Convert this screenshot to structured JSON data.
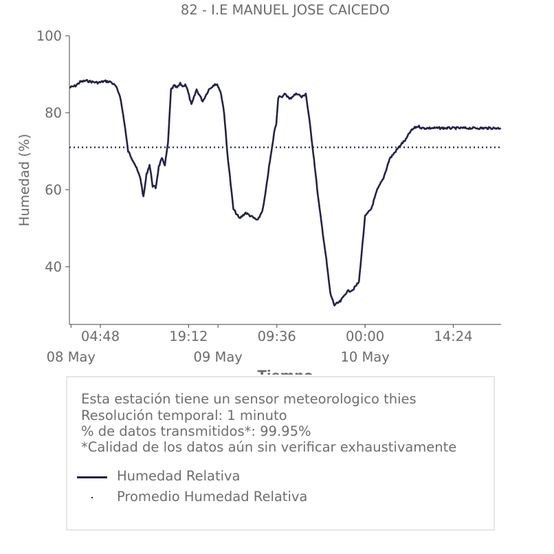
{
  "chart_data": {
    "type": "line",
    "title": "82 - I.E MANUEL JOSE CAICEDO",
    "xlabel": "Tiempo",
    "ylabel": "Humedad (%)",
    "ylim": [
      25,
      100
    ],
    "yticks": [
      40,
      60,
      80,
      100
    ],
    "xlim": [
      "2024-05-07 23:45",
      "2024-05-10 22:12"
    ],
    "xticks": [
      {
        "t": "2024-05-08 04:48",
        "label": "04:48"
      },
      {
        "t": "2024-05-08 19:12",
        "label": "19:12"
      },
      {
        "t": "2024-05-09 09:36",
        "label": "09:36"
      },
      {
        "t": "2024-05-10 00:00",
        "label": "00:00"
      },
      {
        "t": "2024-05-10 14:24",
        "label": "14:24"
      }
    ],
    "day_labels": [
      {
        "t": "2024-05-08 00:00",
        "label": "08 May"
      },
      {
        "t": "2024-05-09 00:00",
        "label": "09 May"
      },
      {
        "t": "2024-05-10 00:00",
        "label": "10 May"
      }
    ],
    "series": [
      {
        "name": "Humedad Relativa",
        "color": "#22224a",
        "style": "solid",
        "x": [
          "2024-05-07 23:45",
          "2024-05-08 00:45",
          "2024-05-08 01:30",
          "2024-05-08 02:30",
          "2024-05-08 03:30",
          "2024-05-08 04:30",
          "2024-05-08 05:30",
          "2024-05-08 06:30",
          "2024-05-08 07:15",
          "2024-05-08 08:00",
          "2024-05-08 08:40",
          "2024-05-08 09:20",
          "2024-05-08 09:50",
          "2024-05-08 10:20",
          "2024-05-08 10:50",
          "2024-05-08 11:20",
          "2024-05-08 11:50",
          "2024-05-08 12:20",
          "2024-05-08 12:50",
          "2024-05-08 13:20",
          "2024-05-08 13:50",
          "2024-05-08 14:20",
          "2024-05-08 14:50",
          "2024-05-08 15:20",
          "2024-05-08 15:50",
          "2024-05-08 16:20",
          "2024-05-08 16:50",
          "2024-05-08 17:20",
          "2024-05-08 17:50",
          "2024-05-08 18:20",
          "2024-05-08 18:40",
          "2024-05-08 19:00",
          "2024-05-08 19:40",
          "2024-05-08 20:30",
          "2024-05-08 21:30",
          "2024-05-08 22:30",
          "2024-05-08 23:30",
          "2024-05-09 00:00",
          "2024-05-09 00:30",
          "2024-05-09 01:00",
          "2024-05-09 01:30",
          "2024-05-09 02:30",
          "2024-05-09 03:30",
          "2024-05-09 04:30",
          "2024-05-09 05:30",
          "2024-05-09 06:30",
          "2024-05-09 07:20",
          "2024-05-09 07:50",
          "2024-05-09 08:20",
          "2024-05-09 08:50",
          "2024-05-09 09:10",
          "2024-05-09 09:30",
          "2024-05-09 09:50",
          "2024-05-09 10:10",
          "2024-05-09 10:30",
          "2024-05-09 11:00",
          "2024-05-09 11:40",
          "2024-05-09 12:20",
          "2024-05-09 13:00",
          "2024-05-09 13:40",
          "2024-05-09 14:20",
          "2024-05-09 15:00",
          "2024-05-09 15:40",
          "2024-05-09 16:20",
          "2024-05-09 17:00",
          "2024-05-09 17:40",
          "2024-05-09 18:20",
          "2024-05-09 19:00",
          "2024-05-09 20:00",
          "2024-05-09 21:00",
          "2024-05-09 22:00",
          "2024-05-09 23:00",
          "2024-05-10 00:00",
          "2024-05-10 01:00",
          "2024-05-10 02:00",
          "2024-05-10 03:00",
          "2024-05-10 04:00",
          "2024-05-10 05:00",
          "2024-05-10 06:00",
          "2024-05-10 06:40",
          "2024-05-10 07:20",
          "2024-05-10 08:00",
          "2024-05-10 08:40",
          "2024-05-10 09:20",
          "2024-05-10 10:00",
          "2024-05-10 10:40",
          "2024-05-10 11:20",
          "2024-05-10 12:00",
          "2024-05-10 12:30",
          "2024-05-10 13:00",
          "2024-05-10 13:30",
          "2024-05-10 14:00",
          "2024-05-10 14:40",
          "2024-05-10 15:30",
          "2024-05-10 16:30",
          "2024-05-10 17:30",
          "2024-05-10 18:20",
          "2024-05-10 18:50",
          "2024-05-10 19:20",
          "2024-05-10 19:50",
          "2024-05-10 20:20",
          "2024-05-10 20:50",
          "2024-05-10 21:20",
          "2024-05-10 21:50",
          "2024-05-10 22:10"
        ],
        "y": [
          86.5,
          87.0,
          88.0,
          88.3,
          88.0,
          87.8,
          88.2,
          88.0,
          87.0,
          84.5,
          78.0,
          70.0,
          68.5,
          67.0,
          65.0,
          63.0,
          58.0,
          64.0,
          66.5,
          61.0,
          60.5,
          66.0,
          68.0,
          66.5,
          72.0,
          86.0,
          87.0,
          86.5,
          87.5,
          86.8,
          87.5,
          86.0,
          82.0,
          86.0,
          83.0,
          86.0,
          87.5,
          87.0,
          85.0,
          80.0,
          70.0,
          55.0,
          52.5,
          54.0,
          53.0,
          52.0,
          55.0,
          60.0,
          66.0,
          71.0,
          75.0,
          77.0,
          84.0,
          84.5,
          84.0,
          85.0,
          83.5,
          84.5,
          85.0,
          84.0,
          85.0,
          77.0,
          68.0,
          58.0,
          50.0,
          42.0,
          33.0,
          30.0,
          31.0,
          33.5,
          34.0,
          36.0,
          53.0,
          55.0,
          60.0,
          63.0,
          68.0,
          70.0,
          72.0,
          73.0,
          75.0,
          76.0,
          76.5,
          76.0,
          76.0,
          76.0,
          76.0,
          76.0,
          76.0,
          76.0,
          76.0,
          76.0,
          76.0,
          76.0,
          76.0,
          76.0,
          76.0,
          76.0,
          76.0,
          76.0,
          76.0,
          76.0,
          76.0,
          76.0,
          76.0
        ]
      },
      {
        "name": "Promedio Humedad Relativa",
        "color": "#22224a",
        "style": "dotted",
        "value": 71
      }
    ],
    "grid": false,
    "legend_placement": "below"
  },
  "info": {
    "lines": [
      "Esta estación tiene un sensor meteorologico thies",
      "Resolución temporal: 1 minuto",
      "% de datos transmitidos*: 99.95%",
      "*Calidad de los datos aún sin verificar exhaustivamente"
    ]
  },
  "legend": {
    "items": [
      {
        "label": "Humedad Relativa",
        "style": "solid"
      },
      {
        "label": "Promedio Humedad Relativa",
        "style": "dotted"
      }
    ]
  },
  "colors": {
    "series": "#22224a",
    "text": "#6b6b6b",
    "axis": "#444444",
    "box_border": "#e6e6e6"
  }
}
